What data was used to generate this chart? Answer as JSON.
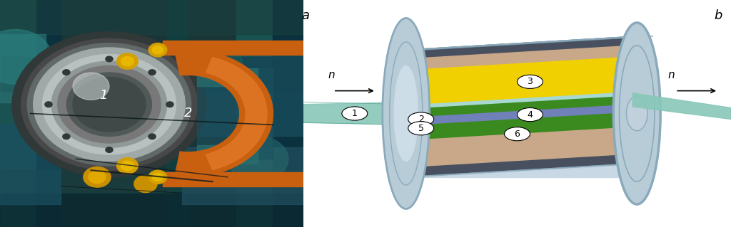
{
  "fig_width": 10.24,
  "fig_height": 3.19,
  "dpi": 100,
  "background_color": "#ffffff",
  "col_spool": "#b8ccd8",
  "col_spool_light": "#ccdde8",
  "col_spool_dark": "#8aaabb",
  "col_spool_rim": "#a0b8cc",
  "col_yellow": "#f0d000",
  "col_green": "#3a8a20",
  "col_blue_layer": "#7080b8",
  "col_tan": "#c8a888",
  "col_teal_beam": "#88c8b8",
  "col_dark_bar": "#485060",
  "col_inner_bg": "#c8d8e4"
}
